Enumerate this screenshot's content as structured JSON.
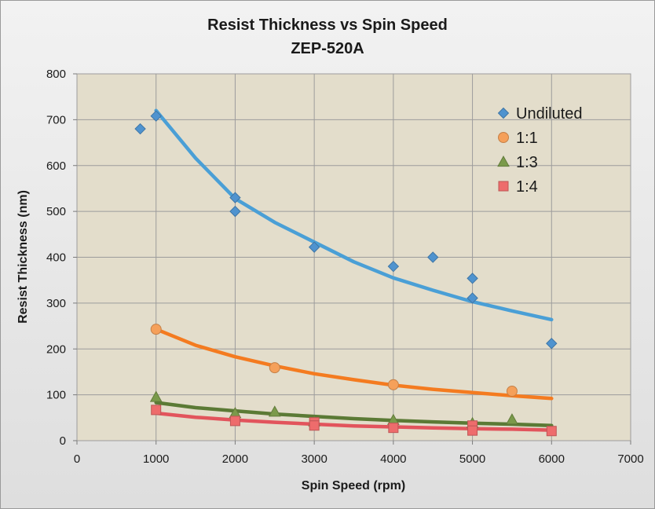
{
  "chart_data": {
    "type": "scatter",
    "title": "Resist Thickness vs Spin Speed",
    "subtitle": "ZEP-520A",
    "xlabel": "Spin Speed (rpm)",
    "ylabel": "Resist Thickness (nm)",
    "xlim": [
      0,
      7000
    ],
    "ylim": [
      0,
      800
    ],
    "xticks": [
      "0",
      "1000",
      "2000",
      "3000",
      "4000",
      "5000",
      "6000",
      "7000"
    ],
    "yticks": [
      "0",
      "100",
      "200",
      "300",
      "400",
      "500",
      "600",
      "700",
      "800"
    ],
    "grid": true,
    "legend_position": "top-right",
    "series": [
      {
        "name": "Undiluted",
        "marker": "diamond",
        "color": "#4f93cf",
        "line_color": "#4a9fd6",
        "points": [
          [
            800,
            680
          ],
          [
            1000,
            708
          ],
          [
            2000,
            530
          ],
          [
            2000,
            500
          ],
          [
            3000,
            422
          ],
          [
            4000,
            380
          ],
          [
            4500,
            400
          ],
          [
            5000,
            354
          ],
          [
            5000,
            311
          ],
          [
            6000,
            212
          ]
        ],
        "fit": [
          [
            1000,
            720
          ],
          [
            1500,
            616
          ],
          [
            2000,
            528
          ],
          [
            2500,
            476
          ],
          [
            3000,
            433
          ],
          [
            3500,
            390
          ],
          [
            4000,
            355
          ],
          [
            4500,
            328
          ],
          [
            5000,
            303
          ],
          [
            5500,
            283
          ],
          [
            6000,
            264
          ]
        ]
      },
      {
        "name": "1:1",
        "marker": "circle",
        "color": "#f5a05a",
        "line_color": "#f47b20",
        "points": [
          [
            1000,
            243
          ],
          [
            2500,
            159
          ],
          [
            4000,
            122
          ],
          [
            5500,
            108
          ]
        ],
        "fit": [
          [
            1000,
            243
          ],
          [
            1500,
            208
          ],
          [
            2000,
            183
          ],
          [
            2500,
            163
          ],
          [
            3000,
            146
          ],
          [
            3500,
            133
          ],
          [
            4000,
            121
          ],
          [
            4500,
            112
          ],
          [
            5000,
            105
          ],
          [
            5500,
            98
          ],
          [
            6000,
            92
          ]
        ]
      },
      {
        "name": "1:3",
        "marker": "triangle",
        "color": "#7a9a4a",
        "line_color": "#5b7a35",
        "points": [
          [
            1000,
            95
          ],
          [
            2000,
            60
          ],
          [
            2500,
            63
          ],
          [
            3000,
            42
          ],
          [
            4000,
            45
          ],
          [
            5000,
            38
          ],
          [
            5500,
            46
          ]
        ],
        "fit": [
          [
            1000,
            83
          ],
          [
            1500,
            72
          ],
          [
            2000,
            65
          ],
          [
            2500,
            58
          ],
          [
            3000,
            53
          ],
          [
            3500,
            48
          ],
          [
            4000,
            44
          ],
          [
            4500,
            41
          ],
          [
            5000,
            38
          ],
          [
            5500,
            36
          ],
          [
            6000,
            33
          ]
        ]
      },
      {
        "name": "1:4",
        "marker": "square",
        "color": "#ee6c6c",
        "line_color": "#e2545c",
        "points": [
          [
            1000,
            67
          ],
          [
            2000,
            43
          ],
          [
            3000,
            40
          ],
          [
            3000,
            33
          ],
          [
            4000,
            28
          ],
          [
            5000,
            33
          ],
          [
            5000,
            22
          ],
          [
            6000,
            21
          ]
        ],
        "fit": [
          [
            1000,
            60
          ],
          [
            1500,
            51
          ],
          [
            2000,
            45
          ],
          [
            2500,
            40
          ],
          [
            3000,
            36
          ],
          [
            3500,
            32
          ],
          [
            4000,
            30
          ],
          [
            4500,
            28
          ],
          [
            5000,
            26
          ],
          [
            5500,
            25
          ],
          [
            6000,
            23
          ]
        ]
      }
    ]
  }
}
